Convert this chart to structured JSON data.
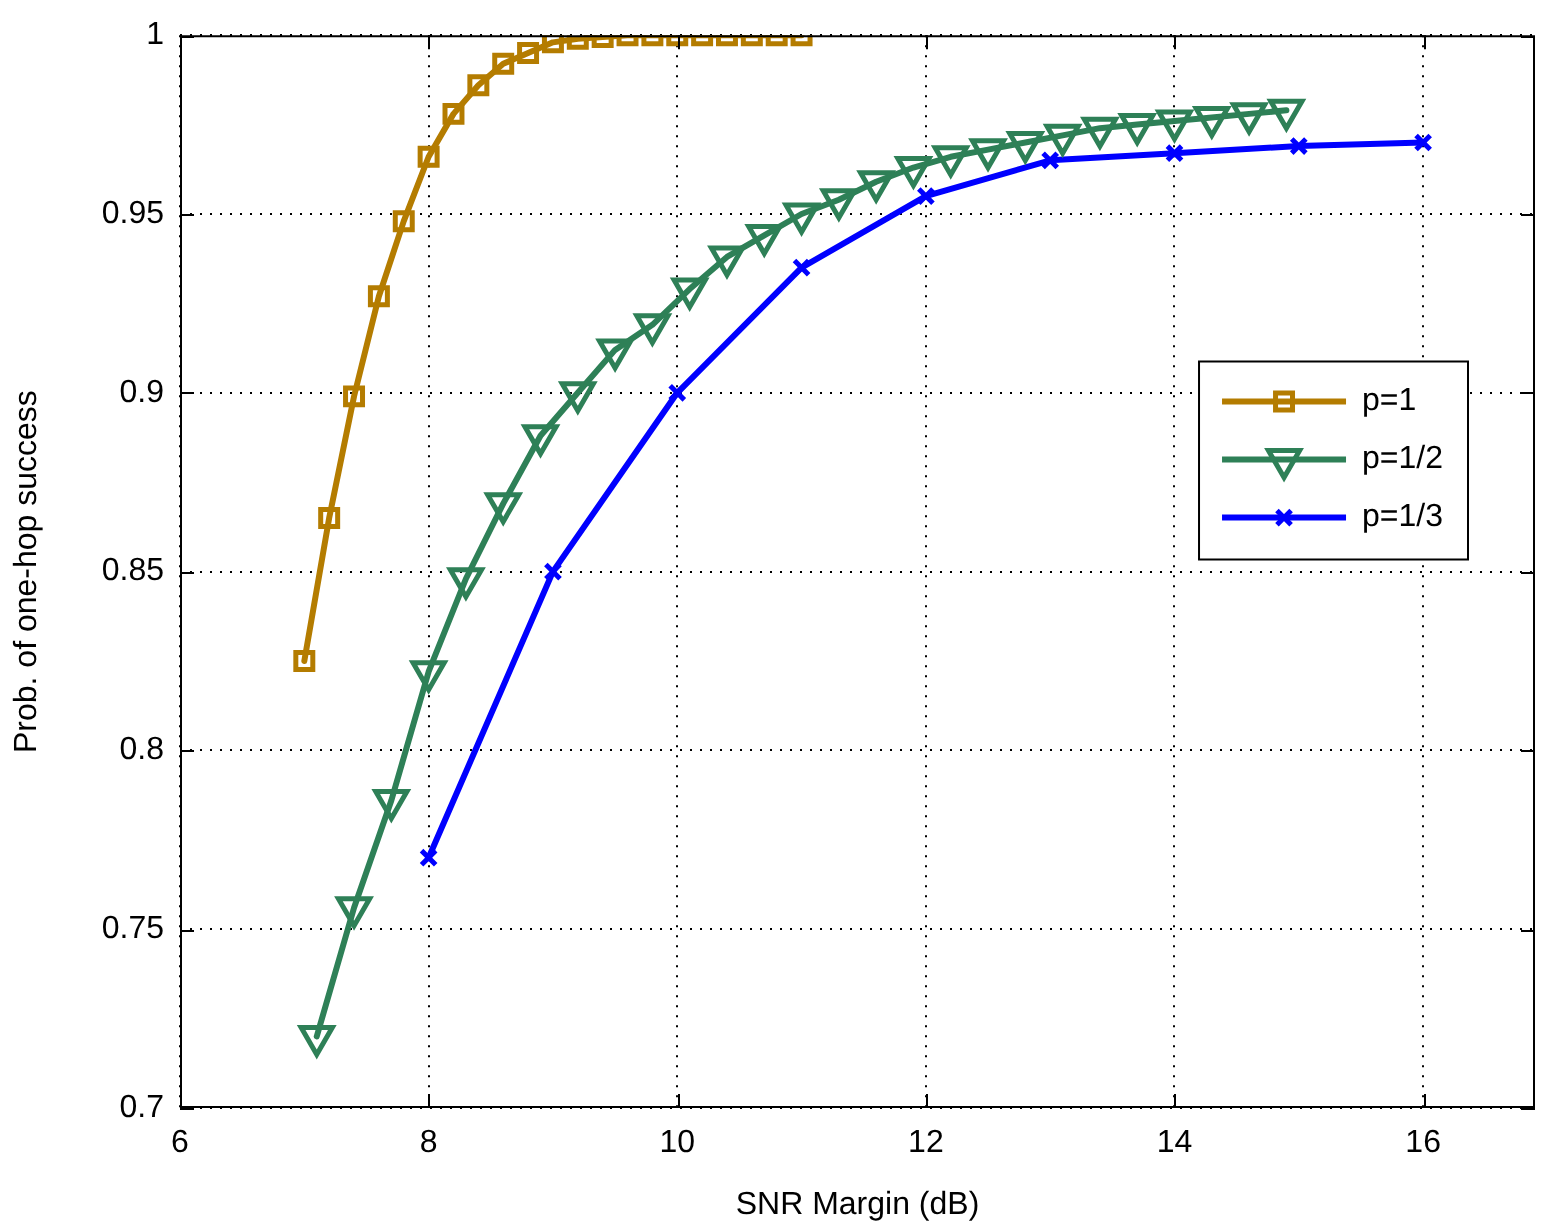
{
  "chart_data": {
    "type": "line",
    "xlabel": "SNR Margin (dB)",
    "ylabel": "Prob. of one-hop success",
    "xlim": [
      6,
      16.9
    ],
    "xticks": [
      6,
      8,
      10,
      12,
      14,
      16
    ],
    "ylim": [
      0.7,
      1
    ],
    "yticks": [
      0.7,
      0.75,
      0.8,
      0.85,
      0.9,
      0.95,
      1
    ],
    "grid": true,
    "line_style": "solid",
    "legend": "right",
    "series": [
      {
        "name": "p=1",
        "color": "#b47c00",
        "marker": "square",
        "x": [
          7,
          7.2,
          7.4,
          7.6,
          7.8,
          8,
          8.2,
          8.4,
          8.6,
          8.8,
          9,
          9.2,
          9.4,
          9.6,
          9.8,
          10,
          10.2,
          10.4,
          10.6,
          10.8,
          11
        ],
        "values": [
          0.825,
          0.865,
          0.899,
          0.927,
          0.948,
          0.966,
          0.978,
          0.986,
          0.992,
          0.995,
          0.998,
          0.999,
          0.9995,
          1,
          1,
          1,
          1,
          1,
          1,
          1,
          1
        ]
      },
      {
        "name": "p=1/2",
        "color": "#2e8057",
        "marker": "triangle",
        "x": [
          7.1,
          7.4,
          7.7,
          8,
          8.3,
          8.6,
          8.9,
          9.2,
          9.5,
          9.8,
          10.1,
          10.4,
          10.7,
          11,
          11.3,
          11.6,
          11.9,
          12.2,
          12.5,
          12.8,
          13.1,
          13.4,
          13.7,
          14,
          14.3,
          14.6,
          14.9
        ],
        "values": [
          0.72,
          0.756,
          0.786,
          0.822,
          0.848,
          0.869,
          0.888,
          0.9,
          0.912,
          0.919,
          0.929,
          0.938,
          0.944,
          0.95,
          0.954,
          0.959,
          0.963,
          0.966,
          0.968,
          0.97,
          0.972,
          0.974,
          0.975,
          0.976,
          0.977,
          0.978,
          0.979
        ]
      },
      {
        "name": "p=1/3",
        "color": "#0000ff",
        "marker": "cross",
        "x": [
          8,
          9,
          10,
          11,
          12,
          13,
          14,
          15,
          16
        ],
        "values": [
          0.77,
          0.85,
          0.9,
          0.935,
          0.955,
          0.965,
          0.967,
          0.969,
          0.97
        ]
      }
    ]
  }
}
